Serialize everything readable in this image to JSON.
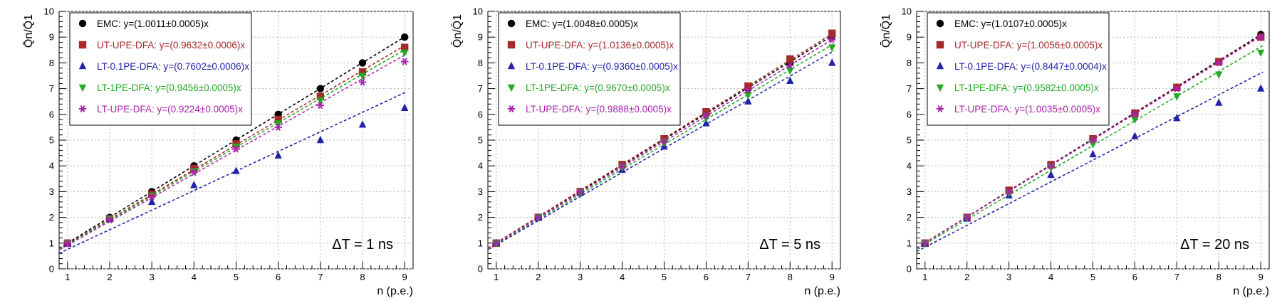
{
  "chart_data": [
    {
      "type": "scatter",
      "annotation": "ΔT = 1 ns",
      "xlabel": "n (p.e.)",
      "ylabel": "Q̄n/Q̄1",
      "xlim": [
        0.8,
        9.2
      ],
      "ylim": [
        0,
        10
      ],
      "x_ticks": [
        1,
        2,
        3,
        4,
        5,
        6,
        7,
        8,
        9
      ],
      "y_ticks": [
        0,
        1,
        2,
        3,
        4,
        5,
        6,
        7,
        8,
        9,
        10
      ],
      "grid": true,
      "legend_position": "top-left",
      "series": [
        {
          "name": "EMC: y=(1.0011±0.0005)x",
          "marker": "circle",
          "color": "#000000",
          "slope": 1.0011,
          "x": [
            1,
            2,
            3,
            4,
            5,
            6,
            7,
            8,
            9
          ],
          "y": [
            1.0,
            2.0,
            3.0,
            4.0,
            5.0,
            6.0,
            7.0,
            8.0,
            9.0
          ]
        },
        {
          "name": "UT-UPE-DFA: y=(0.9632±0.0006)x",
          "marker": "square",
          "color": "#a52a2a",
          "slope": 0.9632,
          "x": [
            1,
            2,
            3,
            4,
            5,
            6,
            7,
            8,
            9
          ],
          "y": [
            1.0,
            1.95,
            2.9,
            3.9,
            4.85,
            5.8,
            6.7,
            7.65,
            8.6
          ]
        },
        {
          "name": "LT-0.1PE-DFA: y=(0.7602±0.0006)x",
          "marker": "triangle-up",
          "color": "#2222aa",
          "slope": 0.7602,
          "x": [
            1,
            2,
            3,
            4,
            5,
            6,
            7,
            8,
            9
          ],
          "y": [
            0.98,
            1.95,
            2.6,
            3.25,
            3.8,
            4.4,
            5.0,
            5.6,
            6.25
          ]
        },
        {
          "name": "LT-1PE-DFA: y=(0.9456±0.0005)x",
          "marker": "triangle-down",
          "color": "#22aa22",
          "slope": 0.9456,
          "x": [
            1,
            2,
            3,
            4,
            5,
            6,
            7,
            8,
            9
          ],
          "y": [
            1.0,
            1.95,
            2.85,
            3.8,
            4.75,
            5.65,
            6.55,
            7.5,
            8.4
          ]
        },
        {
          "name": "LT-UPE-DFA: y=(0.9224±0.0005)x",
          "marker": "star",
          "color": "#aa22aa",
          "slope": 0.9224,
          "x": [
            1,
            2,
            3,
            4,
            5,
            6,
            7,
            8,
            9
          ],
          "y": [
            1.0,
            1.9,
            2.8,
            3.75,
            4.65,
            5.5,
            6.35,
            7.25,
            8.05
          ]
        }
      ]
    },
    {
      "type": "scatter",
      "annotation": "ΔT = 5 ns",
      "xlabel": "n (p.e.)",
      "ylabel": "Q̄n/Q̄1",
      "xlim": [
        0.8,
        9.2
      ],
      "ylim": [
        0,
        10
      ],
      "x_ticks": [
        1,
        2,
        3,
        4,
        5,
        6,
        7,
        8,
        9
      ],
      "y_ticks": [
        0,
        1,
        2,
        3,
        4,
        5,
        6,
        7,
        8,
        9,
        10
      ],
      "grid": true,
      "legend_position": "top-left",
      "series": [
        {
          "name": "EMC: y=(1.0048±0.0005)x",
          "marker": "circle",
          "color": "#000000",
          "slope": 1.0048,
          "x": [
            1,
            2,
            3,
            4,
            5,
            6,
            7,
            8,
            9
          ],
          "y": [
            1.0,
            2.0,
            3.0,
            4.0,
            5.0,
            6.0,
            7.0,
            8.0,
            9.05
          ]
        },
        {
          "name": "UT-UPE-DFA: y=(1.0136±0.0005)x",
          "marker": "square",
          "color": "#a52a2a",
          "slope": 1.0136,
          "x": [
            1,
            2,
            3,
            4,
            5,
            6,
            7,
            8,
            9
          ],
          "y": [
            1.0,
            2.0,
            3.0,
            4.05,
            5.05,
            6.1,
            7.1,
            8.15,
            9.15
          ]
        },
        {
          "name": "LT-0.1PE-DFA: y=(0.9360±0.0005)x",
          "marker": "triangle-up",
          "color": "#2222aa",
          "slope": 0.936,
          "x": [
            1,
            2,
            3,
            4,
            5,
            6,
            7,
            8,
            9
          ],
          "y": [
            1.0,
            1.98,
            2.95,
            3.85,
            4.75,
            5.65,
            6.5,
            7.3,
            8.0
          ]
        },
        {
          "name": "LT-1PE-DFA: y=(0.9670±0.0005)x",
          "marker": "triangle-down",
          "color": "#22aa22",
          "slope": 0.967,
          "x": [
            1,
            2,
            3,
            4,
            5,
            6,
            7,
            8,
            9
          ],
          "y": [
            1.0,
            2.0,
            2.98,
            3.95,
            4.9,
            5.85,
            6.75,
            7.7,
            8.6
          ]
        },
        {
          "name": "LT-UPE-DFA: y=(0.9888±0.0005)x",
          "marker": "star",
          "color": "#aa22aa",
          "slope": 0.9888,
          "x": [
            1,
            2,
            3,
            4,
            5,
            6,
            7,
            8,
            9
          ],
          "y": [
            1.0,
            2.0,
            3.0,
            3.98,
            4.95,
            5.95,
            6.95,
            7.9,
            8.9
          ]
        }
      ]
    },
    {
      "type": "scatter",
      "annotation": "ΔT = 20 ns",
      "xlabel": "n (p.e.)",
      "ylabel": "Q̄n/Q̄1",
      "xlim": [
        0.8,
        9.2
      ],
      "ylim": [
        0,
        10
      ],
      "x_ticks": [
        1,
        2,
        3,
        4,
        5,
        6,
        7,
        8,
        9
      ],
      "y_ticks": [
        0,
        1,
        2,
        3,
        4,
        5,
        6,
        7,
        8,
        9,
        10
      ],
      "grid": true,
      "legend_position": "top-left",
      "series": [
        {
          "name": "EMC: y=(1.0107±0.0005)x",
          "marker": "circle",
          "color": "#000000",
          "slope": 1.0107,
          "x": [
            1,
            2,
            3,
            4,
            5,
            6,
            7,
            8,
            9
          ],
          "y": [
            1.0,
            2.0,
            3.05,
            4.05,
            5.05,
            6.05,
            7.05,
            8.05,
            9.1
          ]
        },
        {
          "name": "UT-UPE-DFA: y=(1.0056±0.0005)x",
          "marker": "square",
          "color": "#a52a2a",
          "slope": 1.0056,
          "x": [
            1,
            2,
            3,
            4,
            5,
            6,
            7,
            8,
            9
          ],
          "y": [
            1.0,
            2.0,
            3.05,
            4.05,
            5.05,
            6.05,
            7.05,
            8.05,
            9.0
          ]
        },
        {
          "name": "LT-0.1PE-DFA: y=(0.8447±0.0004)x",
          "marker": "triangle-up",
          "color": "#2222aa",
          "slope": 0.8447,
          "x": [
            1,
            2,
            3,
            4,
            5,
            6,
            7,
            8,
            9
          ],
          "y": [
            0.98,
            1.95,
            2.85,
            3.65,
            4.45,
            5.15,
            5.85,
            6.45,
            7.0
          ]
        },
        {
          "name": "LT-1PE-DFA: y=(0.9582±0.0005)x",
          "marker": "triangle-down",
          "color": "#22aa22",
          "slope": 0.9582,
          "x": [
            1,
            2,
            3,
            4,
            5,
            6,
            7,
            8,
            9
          ],
          "y": [
            1.0,
            1.98,
            2.95,
            3.95,
            4.85,
            5.8,
            6.7,
            7.55,
            8.4
          ]
        },
        {
          "name": "LT-UPE-DFA: y=(1.0035±0.0005)x",
          "marker": "star",
          "color": "#aa22aa",
          "slope": 1.0035,
          "x": [
            1,
            2,
            3,
            4,
            5,
            6,
            7,
            8,
            9
          ],
          "y": [
            1.0,
            2.0,
            3.0,
            4.0,
            5.0,
            6.0,
            7.0,
            8.0,
            9.0
          ]
        }
      ]
    }
  ]
}
